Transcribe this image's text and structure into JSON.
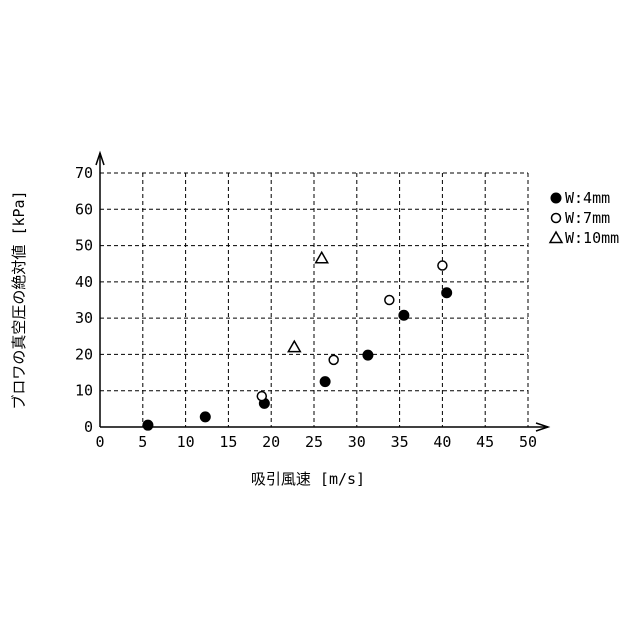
{
  "chart_data": {
    "type": "scatter",
    "title": "",
    "xlabel": "吸引風速 [m/s]",
    "ylabel": "ブロワの真空圧の絶対値 [kPa]",
    "xlim": [
      0,
      50
    ],
    "ylim": [
      0,
      70
    ],
    "x_ticks": [
      "0",
      "5",
      "10",
      "15",
      "20",
      "25",
      "30",
      "35",
      "40",
      "45",
      "50"
    ],
    "y_ticks": [
      "0",
      "10",
      "20",
      "30",
      "40",
      "50",
      "60",
      "70"
    ],
    "grid": true,
    "grid_style": "dashed",
    "legend_position": "right",
    "series": [
      {
        "name": "W:4mm",
        "marker": "filled-circle",
        "color": "#000000",
        "points": [
          {
            "x": 5.6,
            "y": 0.5
          },
          {
            "x": 12.3,
            "y": 2.8
          },
          {
            "x": 19.2,
            "y": 6.5
          },
          {
            "x": 26.3,
            "y": 12.5
          },
          {
            "x": 31.3,
            "y": 19.8
          },
          {
            "x": 35.5,
            "y": 30.8
          },
          {
            "x": 40.5,
            "y": 37.0
          }
        ]
      },
      {
        "name": "W:7mm",
        "marker": "open-circle",
        "color": "#000000",
        "points": [
          {
            "x": 18.9,
            "y": 8.5
          },
          {
            "x": 27.3,
            "y": 18.5
          },
          {
            "x": 33.8,
            "y": 35.0
          },
          {
            "x": 40.0,
            "y": 44.5
          }
        ]
      },
      {
        "name": "W:10mm",
        "marker": "open-triangle",
        "color": "#000000",
        "points": [
          {
            "x": 22.7,
            "y": 22.0
          },
          {
            "x": 25.9,
            "y": 46.5
          }
        ]
      }
    ]
  }
}
